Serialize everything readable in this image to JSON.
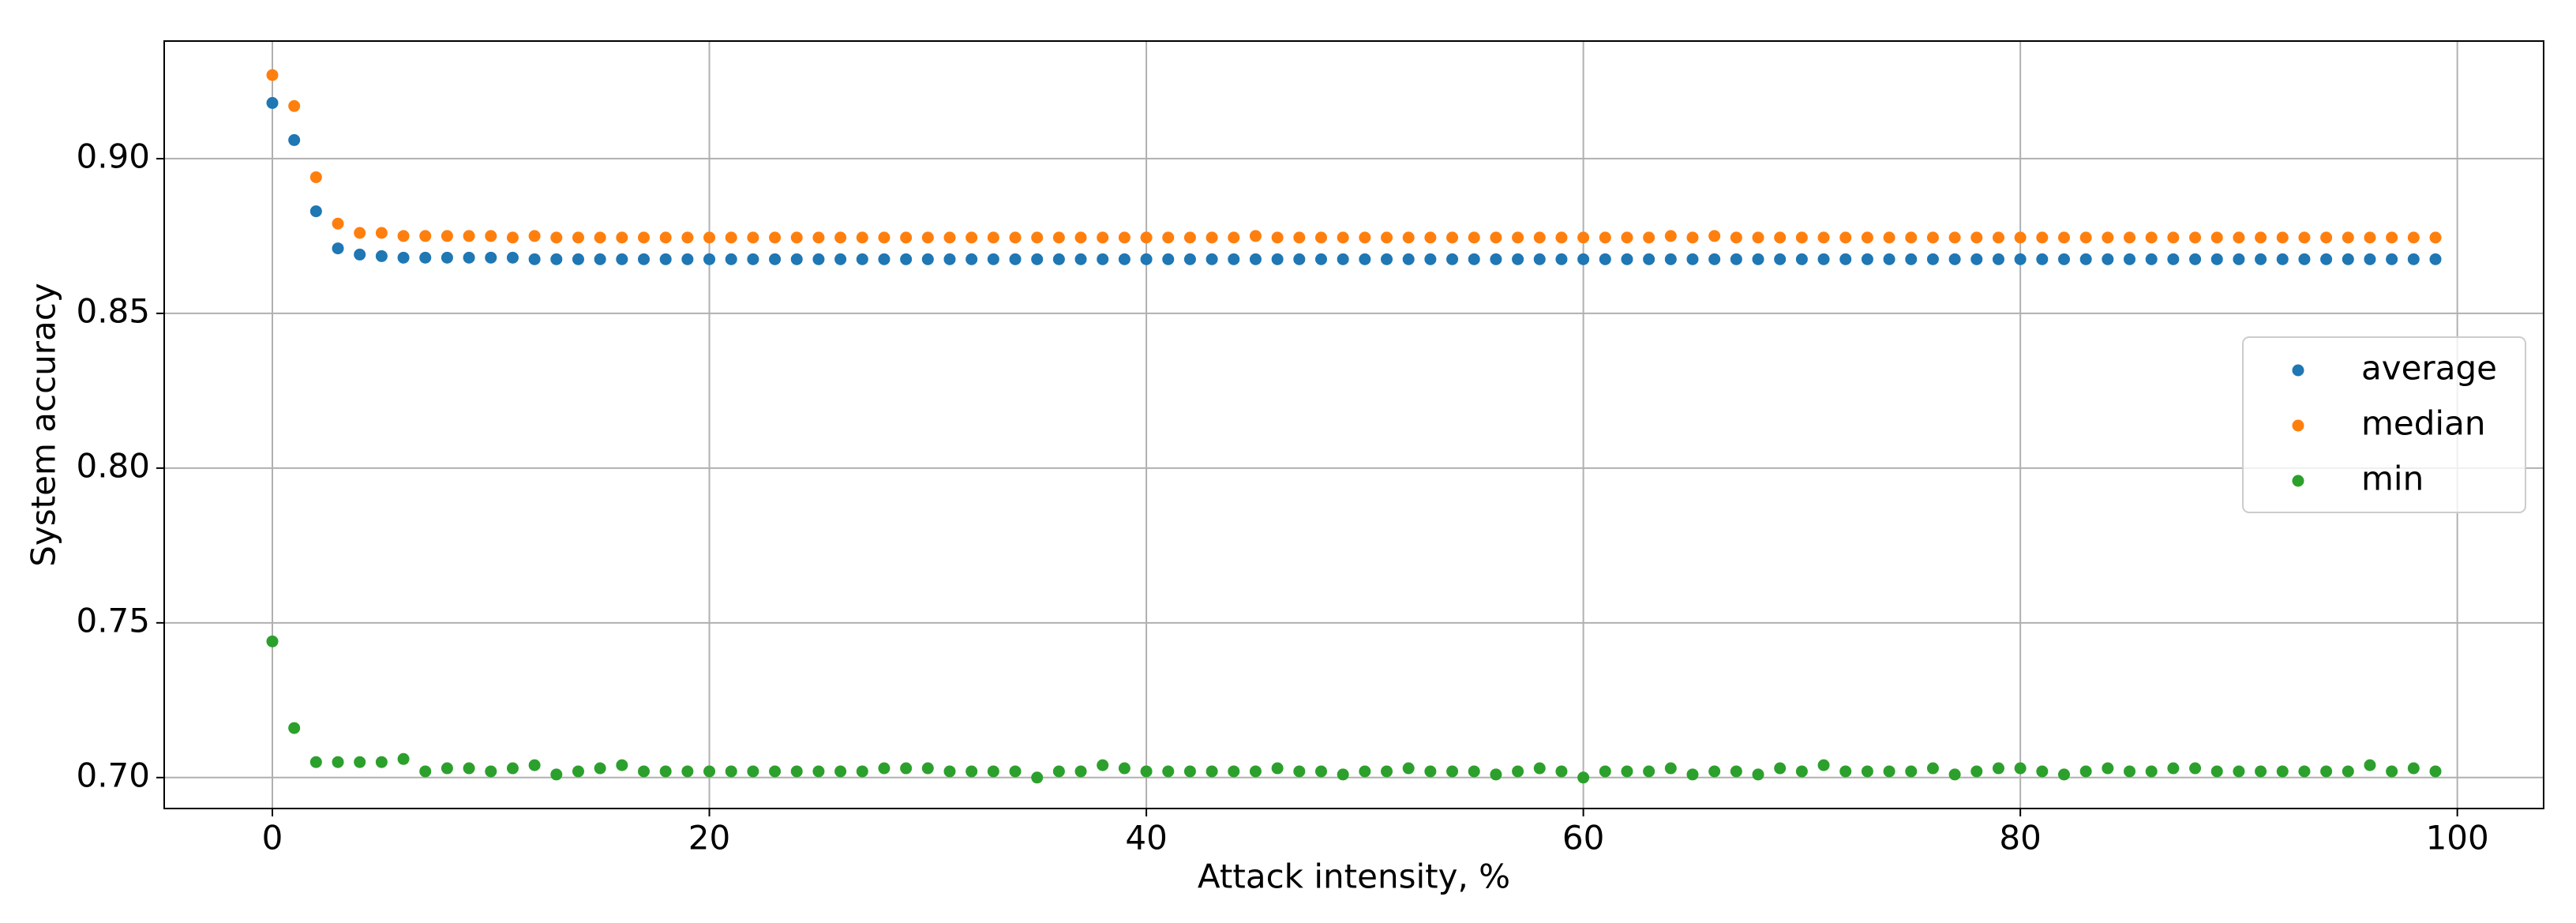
{
  "chart_data": {
    "type": "scatter",
    "x_label": "Attack intensity, %",
    "y_label": "System accuracy",
    "x": [
      0,
      1,
      2,
      3,
      4,
      5,
      6,
      7,
      8,
      9,
      10,
      11,
      12,
      13,
      14,
      15,
      16,
      17,
      18,
      19,
      20,
      21,
      22,
      23,
      24,
      25,
      26,
      27,
      28,
      29,
      30,
      31,
      32,
      33,
      34,
      35,
      36,
      37,
      38,
      39,
      40,
      41,
      42,
      43,
      44,
      45,
      46,
      47,
      48,
      49,
      50,
      51,
      52,
      53,
      54,
      55,
      56,
      57,
      58,
      59,
      60,
      61,
      62,
      63,
      64,
      65,
      66,
      67,
      68,
      69,
      70,
      71,
      72,
      73,
      74,
      75,
      76,
      77,
      78,
      79,
      80,
      81,
      82,
      83,
      84,
      85,
      86,
      87,
      88,
      89,
      90,
      91,
      92,
      93,
      94,
      95,
      96,
      97,
      98,
      99
    ],
    "series": [
      {
        "name": "average",
        "color": "#1f77b4",
        "values": [
          0.918,
          0.906,
          0.883,
          0.871,
          0.869,
          0.8685,
          0.868,
          0.868,
          0.868,
          0.868,
          0.868,
          0.868,
          0.8675,
          0.8675,
          0.8675,
          0.8675,
          0.8675,
          0.8675,
          0.8675,
          0.8675,
          0.8675,
          0.8675,
          0.8675,
          0.8675,
          0.8675,
          0.8675,
          0.8675,
          0.8675,
          0.8675,
          0.8675,
          0.8675,
          0.8675,
          0.8675,
          0.8675,
          0.8675,
          0.8675,
          0.8675,
          0.8675,
          0.8675,
          0.8675,
          0.8675,
          0.8675,
          0.8675,
          0.8675,
          0.8675,
          0.8675,
          0.8675,
          0.8675,
          0.8675,
          0.8675,
          0.8675,
          0.8675,
          0.8675,
          0.8675,
          0.8675,
          0.8675,
          0.8675,
          0.8675,
          0.8675,
          0.8675,
          0.8675,
          0.8675,
          0.8675,
          0.8675,
          0.8675,
          0.8675,
          0.8675,
          0.8675,
          0.8675,
          0.8675,
          0.8675,
          0.8675,
          0.8675,
          0.8675,
          0.8675,
          0.8675,
          0.8675,
          0.8675,
          0.8675,
          0.8675,
          0.8675,
          0.8675,
          0.8675,
          0.8675,
          0.8675,
          0.8675,
          0.8675,
          0.8675,
          0.8675,
          0.8675,
          0.8675,
          0.8675,
          0.8675,
          0.8675,
          0.8675,
          0.8675,
          0.8675,
          0.8675,
          0.8675,
          0.8675
        ]
      },
      {
        "name": "median",
        "color": "#ff7f0e",
        "values": [
          0.927,
          0.917,
          0.894,
          0.879,
          0.876,
          0.876,
          0.875,
          0.875,
          0.875,
          0.875,
          0.875,
          0.8745,
          0.875,
          0.8745,
          0.8745,
          0.8745,
          0.8745,
          0.8745,
          0.8745,
          0.8745,
          0.8745,
          0.8745,
          0.8745,
          0.8745,
          0.8745,
          0.8745,
          0.8745,
          0.8745,
          0.8745,
          0.8745,
          0.8745,
          0.8745,
          0.8745,
          0.8745,
          0.8745,
          0.8745,
          0.8745,
          0.8745,
          0.8745,
          0.8745,
          0.8745,
          0.8745,
          0.8745,
          0.8745,
          0.8745,
          0.875,
          0.8745,
          0.8745,
          0.8745,
          0.8745,
          0.8745,
          0.8745,
          0.8745,
          0.8745,
          0.8745,
          0.8745,
          0.8745,
          0.8745,
          0.8745,
          0.8745,
          0.8745,
          0.8745,
          0.8745,
          0.8745,
          0.875,
          0.8745,
          0.875,
          0.8745,
          0.8745,
          0.8745,
          0.8745,
          0.8745,
          0.8745,
          0.8745,
          0.8745,
          0.8745,
          0.8745,
          0.8745,
          0.8745,
          0.8745,
          0.8745,
          0.8745,
          0.8745,
          0.8745,
          0.8745,
          0.8745,
          0.8745,
          0.8745,
          0.8745,
          0.8745,
          0.8745,
          0.8745,
          0.8745,
          0.8745,
          0.8745,
          0.8745,
          0.8745,
          0.8745,
          0.8745,
          0.8745
        ]
      },
      {
        "name": "min",
        "color": "#2ca02c",
        "values": [
          0.744,
          0.716,
          0.705,
          0.705,
          0.705,
          0.705,
          0.706,
          0.702,
          0.703,
          0.703,
          0.702,
          0.703,
          0.704,
          0.701,
          0.702,
          0.703,
          0.704,
          0.702,
          0.702,
          0.702,
          0.702,
          0.702,
          0.702,
          0.702,
          0.702,
          0.702,
          0.702,
          0.702,
          0.703,
          0.703,
          0.703,
          0.702,
          0.702,
          0.702,
          0.702,
          0.7,
          0.702,
          0.702,
          0.704,
          0.703,
          0.702,
          0.702,
          0.702,
          0.702,
          0.702,
          0.702,
          0.703,
          0.702,
          0.702,
          0.701,
          0.702,
          0.702,
          0.703,
          0.702,
          0.702,
          0.702,
          0.701,
          0.702,
          0.703,
          0.702,
          0.7,
          0.702,
          0.702,
          0.702,
          0.703,
          0.701,
          0.702,
          0.702,
          0.701,
          0.703,
          0.702,
          0.704,
          0.702,
          0.702,
          0.702,
          0.702,
          0.703,
          0.701,
          0.702,
          0.703,
          0.703,
          0.702,
          0.701,
          0.702,
          0.703,
          0.702,
          0.702,
          0.703,
          0.703,
          0.702,
          0.702,
          0.702,
          0.702,
          0.702,
          0.702,
          0.702,
          0.704,
          0.702,
          0.703,
          0.702
        ]
      }
    ],
    "xlim": [
      -4.95,
      103.95
    ],
    "ylim": [
      0.69,
      0.938
    ],
    "xticks": [
      0,
      20,
      40,
      60,
      80,
      100
    ],
    "yticks": [
      {
        "value": 0.7,
        "label": "0.70"
      },
      0.75,
      {
        "value": 0.8,
        "label": "0.80"
      },
      0.85,
      {
        "value": 0.9,
        "label": "0.90"
      }
    ],
    "grid": true,
    "legend_position": "center right"
  }
}
